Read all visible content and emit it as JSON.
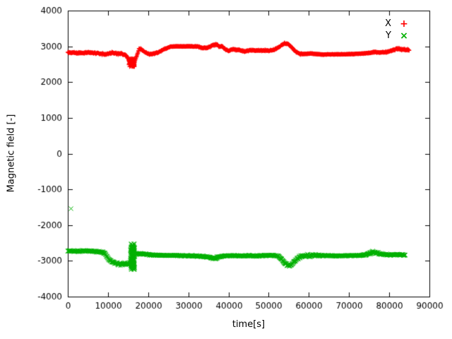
{
  "chart_data": {
    "type": "scatter",
    "title": "",
    "xlabel": "time[s]",
    "ylabel": "Magnetic field [-]",
    "xlim": [
      0,
      90000
    ],
    "ylim": [
      -4000,
      4000
    ],
    "grid": false,
    "legend_position": "top-right-inside",
    "axis_color": "#000000",
    "xticks": [
      0,
      10000,
      20000,
      30000,
      40000,
      50000,
      60000,
      70000,
      80000,
      90000
    ],
    "xtick_labels": [
      "0",
      "10000",
      "20000",
      "30000",
      "40000",
      "50000",
      "60000",
      "70000",
      "80000",
      "90000"
    ],
    "yticks": [
      -4000,
      -3000,
      -2000,
      -1000,
      0,
      1000,
      2000,
      3000,
      4000
    ],
    "ytick_labels": [
      "-4000",
      "-3000",
      "-2000",
      "-1000",
      "0",
      "1000",
      "2000",
      "3000",
      "4000"
    ],
    "series": [
      {
        "name": "X",
        "marker": "plus",
        "marker_glyph": "+",
        "color": "#ff0000",
        "step": 70,
        "t_end": 85000,
        "mean": [
          [
            0,
            2830
          ],
          [
            3000,
            2815
          ],
          [
            5000,
            2830
          ],
          [
            7000,
            2810
          ],
          [
            8500,
            2790
          ],
          [
            9500,
            2775
          ],
          [
            10500,
            2815
          ],
          [
            12000,
            2805
          ],
          [
            13500,
            2790
          ],
          [
            14500,
            2745
          ],
          [
            15300,
            2620
          ],
          [
            16000,
            2520
          ],
          [
            16600,
            2560
          ],
          [
            17100,
            2700
          ],
          [
            17800,
            2940
          ],
          [
            18400,
            2910
          ],
          [
            19300,
            2830
          ],
          [
            20300,
            2780
          ],
          [
            21300,
            2795
          ],
          [
            22500,
            2830
          ],
          [
            24000,
            2920
          ],
          [
            25500,
            2990
          ],
          [
            27000,
            3000
          ],
          [
            29000,
            3000
          ],
          [
            31000,
            3000
          ],
          [
            32500,
            2990
          ],
          [
            33500,
            2950
          ],
          [
            34800,
            2960
          ],
          [
            36000,
            3030
          ],
          [
            37000,
            3060
          ],
          [
            37700,
            2990
          ],
          [
            38400,
            3010
          ],
          [
            39200,
            2910
          ],
          [
            40000,
            2870
          ],
          [
            41000,
            2920
          ],
          [
            42500,
            2900
          ],
          [
            44000,
            2855
          ],
          [
            45500,
            2895
          ],
          [
            47000,
            2890
          ],
          [
            48500,
            2885
          ],
          [
            50000,
            2880
          ],
          [
            51500,
            2915
          ],
          [
            52800,
            3000
          ],
          [
            54000,
            3085
          ],
          [
            54800,
            3070
          ],
          [
            55800,
            2960
          ],
          [
            56800,
            2850
          ],
          [
            57800,
            2790
          ],
          [
            59000,
            2785
          ],
          [
            60500,
            2800
          ],
          [
            62000,
            2780
          ],
          [
            63500,
            2770
          ],
          [
            65000,
            2775
          ],
          [
            67000,
            2775
          ],
          [
            69000,
            2780
          ],
          [
            71000,
            2785
          ],
          [
            73000,
            2795
          ],
          [
            75000,
            2815
          ],
          [
            76500,
            2840
          ],
          [
            78000,
            2830
          ],
          [
            79500,
            2845
          ],
          [
            81000,
            2900
          ],
          [
            82000,
            2935
          ],
          [
            83000,
            2915
          ],
          [
            85000,
            2900
          ]
        ],
        "noise": [
          [
            0,
            35
          ],
          [
            6000,
            35
          ],
          [
            9000,
            40
          ],
          [
            12000,
            40
          ],
          [
            14500,
            55
          ],
          [
            16000,
            60
          ],
          [
            17500,
            45
          ],
          [
            19000,
            35
          ],
          [
            21000,
            30
          ],
          [
            24000,
            25
          ],
          [
            26000,
            15
          ],
          [
            30000,
            12
          ],
          [
            33000,
            25
          ],
          [
            35000,
            35
          ],
          [
            37000,
            40
          ],
          [
            39000,
            35
          ],
          [
            41000,
            35
          ],
          [
            44000,
            30
          ],
          [
            47000,
            28
          ],
          [
            50000,
            28
          ],
          [
            53000,
            35
          ],
          [
            55000,
            40
          ],
          [
            57000,
            30
          ],
          [
            59000,
            25
          ],
          [
            62000,
            18
          ],
          [
            65000,
            14
          ],
          [
            68000,
            14
          ],
          [
            71000,
            16
          ],
          [
            74000,
            20
          ],
          [
            77000,
            25
          ],
          [
            79500,
            30
          ],
          [
            81500,
            45
          ],
          [
            83000,
            45
          ],
          [
            85000,
            40
          ]
        ],
        "clusters": [
          {
            "t0": 15200,
            "t1": 16600,
            "vmin": 2430,
            "vmax": 2660,
            "count": 130
          }
        ],
        "outliers": []
      },
      {
        "name": "Y",
        "marker": "cross",
        "marker_glyph": "×",
        "color": "#00b000",
        "step": 70,
        "t_end": 84000,
        "mean": [
          [
            0,
            -2720
          ],
          [
            2000,
            -2730
          ],
          [
            4000,
            -2720
          ],
          [
            6000,
            -2730
          ],
          [
            8000,
            -2745
          ],
          [
            9200,
            -2790
          ],
          [
            10200,
            -2950
          ],
          [
            11200,
            -3040
          ],
          [
            12200,
            -3075
          ],
          [
            13200,
            -3100
          ],
          [
            14200,
            -3085
          ],
          [
            15000,
            -3095
          ],
          [
            15800,
            -3010
          ],
          [
            16400,
            -2860
          ],
          [
            17000,
            -2800
          ],
          [
            18000,
            -2795
          ],
          [
            19500,
            -2815
          ],
          [
            21000,
            -2835
          ],
          [
            23000,
            -2845
          ],
          [
            25000,
            -2850
          ],
          [
            27500,
            -2850
          ],
          [
            30000,
            -2858
          ],
          [
            32000,
            -2865
          ],
          [
            34000,
            -2880
          ],
          [
            35500,
            -2905
          ],
          [
            36600,
            -2935
          ],
          [
            37600,
            -2885
          ],
          [
            39000,
            -2860
          ],
          [
            41000,
            -2852
          ],
          [
            43000,
            -2860
          ],
          [
            45000,
            -2855
          ],
          [
            47000,
            -2862
          ],
          [
            49000,
            -2852
          ],
          [
            51000,
            -2842
          ],
          [
            52500,
            -2875
          ],
          [
            53500,
            -2995
          ],
          [
            54500,
            -3105
          ],
          [
            55300,
            -3135
          ],
          [
            56100,
            -3060
          ],
          [
            57000,
            -2945
          ],
          [
            58000,
            -2875
          ],
          [
            59500,
            -2855
          ],
          [
            61000,
            -2845
          ],
          [
            63000,
            -2852
          ],
          [
            65000,
            -2856
          ],
          [
            67000,
            -2860
          ],
          [
            69000,
            -2856
          ],
          [
            71000,
            -2852
          ],
          [
            73000,
            -2850
          ],
          [
            74800,
            -2805
          ],
          [
            76000,
            -2755
          ],
          [
            77200,
            -2785
          ],
          [
            78500,
            -2822
          ],
          [
            80000,
            -2832
          ],
          [
            82000,
            -2822
          ],
          [
            84000,
            -2832
          ]
        ],
        "noise": [
          [
            0,
            30
          ],
          [
            6000,
            30
          ],
          [
            9000,
            45
          ],
          [
            11000,
            60
          ],
          [
            13000,
            70
          ],
          [
            14800,
            80
          ],
          [
            16200,
            90
          ],
          [
            17200,
            45
          ],
          [
            19000,
            30
          ],
          [
            22000,
            22
          ],
          [
            25000,
            20
          ],
          [
            28000,
            22
          ],
          [
            31000,
            25
          ],
          [
            34000,
            35
          ],
          [
            36500,
            55
          ],
          [
            38000,
            32
          ],
          [
            40000,
            25
          ],
          [
            43000,
            25
          ],
          [
            46000,
            30
          ],
          [
            49000,
            25
          ],
          [
            52000,
            35
          ],
          [
            54000,
            55
          ],
          [
            55500,
            60
          ],
          [
            57000,
            45
          ],
          [
            58500,
            60
          ],
          [
            60000,
            80
          ],
          [
            61500,
            60
          ],
          [
            63000,
            35
          ],
          [
            66000,
            22
          ],
          [
            69000,
            20
          ],
          [
            72000,
            20
          ],
          [
            74500,
            45
          ],
          [
            76000,
            60
          ],
          [
            77500,
            45
          ],
          [
            79000,
            35
          ],
          [
            81500,
            35
          ],
          [
            84000,
            40
          ]
        ],
        "clusters": [
          {
            "t0": 15600,
            "t1": 16600,
            "vmin": -3250,
            "vmax": -2520,
            "count": 160
          }
        ],
        "outliers": [
          [
            800,
            -1540
          ]
        ]
      }
    ]
  }
}
